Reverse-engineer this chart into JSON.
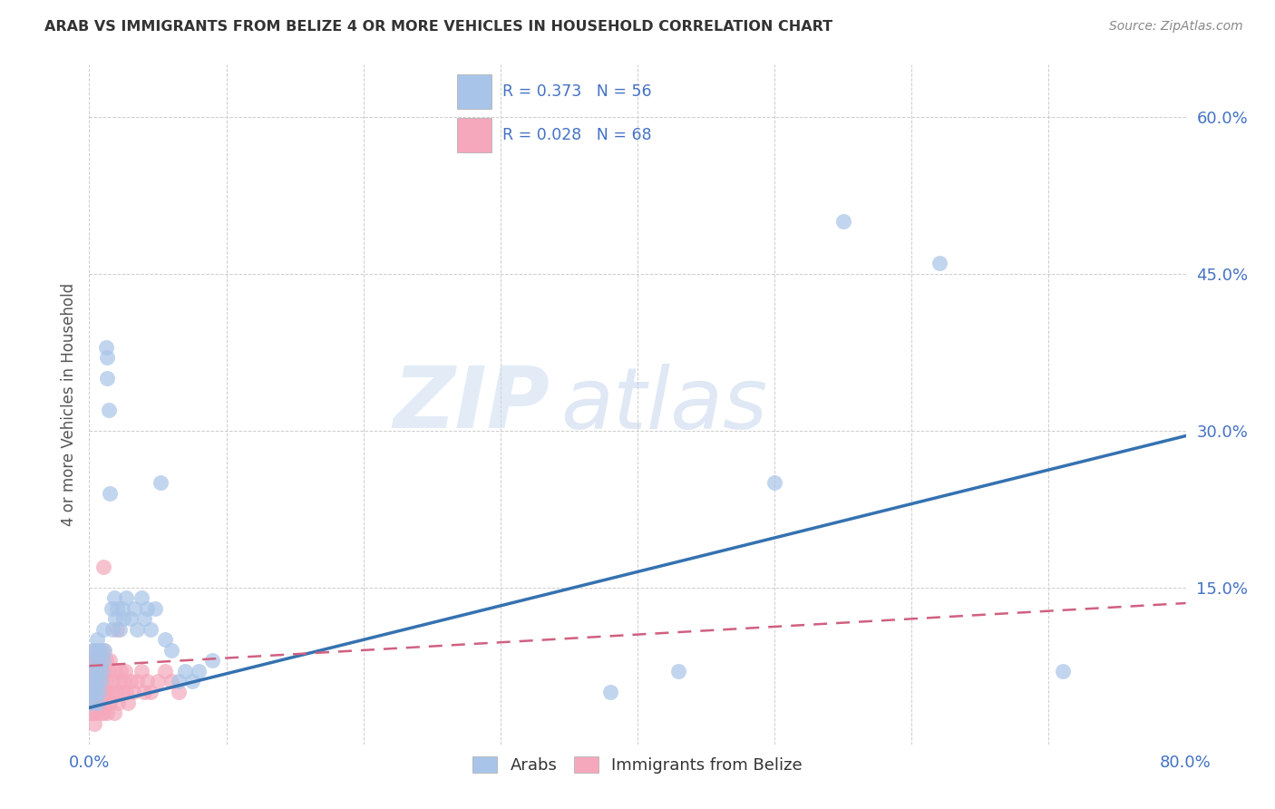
{
  "title": "ARAB VS IMMIGRANTS FROM BELIZE 4 OR MORE VEHICLES IN HOUSEHOLD CORRELATION CHART",
  "source": "Source: ZipAtlas.com",
  "ylabel": "4 or more Vehicles in Household",
  "xlim": [
    0.0,
    0.8
  ],
  "ylim": [
    0.0,
    0.65
  ],
  "xticks": [
    0.0,
    0.1,
    0.2,
    0.3,
    0.4,
    0.5,
    0.6,
    0.7,
    0.8
  ],
  "yticks": [
    0.0,
    0.15,
    0.3,
    0.45,
    0.6
  ],
  "xtick_labels": [
    "0.0%",
    "",
    "",
    "",
    "",
    "",
    "",
    "",
    "80.0%"
  ],
  "ytick_labels": [
    "",
    "15.0%",
    "30.0%",
    "45.0%",
    "60.0%"
  ],
  "arab_color": "#a8c4e8",
  "belize_color": "#f5a8bc",
  "arab_R": 0.373,
  "arab_N": 56,
  "belize_R": 0.028,
  "belize_N": 68,
  "legend_label_arab": "Arabs",
  "legend_label_belize": "Immigrants from Belize",
  "watermark_zip": "ZIP",
  "watermark_atlas": "atlas",
  "arab_line_x": [
    0.0,
    0.8
  ],
  "arab_line_y": [
    0.035,
    0.295
  ],
  "belize_line_x": [
    0.0,
    0.8
  ],
  "belize_line_y": [
    0.075,
    0.135
  ],
  "arab_scatter_x": [
    0.001,
    0.002,
    0.002,
    0.003,
    0.003,
    0.004,
    0.004,
    0.005,
    0.005,
    0.006,
    0.006,
    0.006,
    0.007,
    0.007,
    0.008,
    0.008,
    0.009,
    0.01,
    0.01,
    0.011,
    0.012,
    0.013,
    0.013,
    0.014,
    0.015,
    0.016,
    0.017,
    0.018,
    0.019,
    0.02,
    0.022,
    0.024,
    0.025,
    0.027,
    0.03,
    0.033,
    0.035,
    0.038,
    0.04,
    0.042,
    0.045,
    0.048,
    0.052,
    0.055,
    0.06,
    0.065,
    0.07,
    0.075,
    0.08,
    0.09,
    0.38,
    0.43,
    0.5,
    0.55,
    0.62,
    0.71
  ],
  "arab_scatter_y": [
    0.04,
    0.05,
    0.08,
    0.06,
    0.09,
    0.05,
    0.07,
    0.06,
    0.09,
    0.04,
    0.07,
    0.1,
    0.05,
    0.08,
    0.06,
    0.09,
    0.07,
    0.08,
    0.11,
    0.09,
    0.38,
    0.37,
    0.35,
    0.32,
    0.24,
    0.13,
    0.11,
    0.14,
    0.12,
    0.13,
    0.11,
    0.13,
    0.12,
    0.14,
    0.12,
    0.13,
    0.11,
    0.14,
    0.12,
    0.13,
    0.11,
    0.13,
    0.25,
    0.1,
    0.09,
    0.06,
    0.07,
    0.06,
    0.07,
    0.08,
    0.05,
    0.07,
    0.25,
    0.5,
    0.46,
    0.07
  ],
  "belize_scatter_x": [
    0.0003,
    0.0005,
    0.0007,
    0.001,
    0.001,
    0.0012,
    0.0015,
    0.002,
    0.002,
    0.0025,
    0.003,
    0.003,
    0.003,
    0.004,
    0.004,
    0.004,
    0.005,
    0.005,
    0.005,
    0.006,
    0.006,
    0.006,
    0.007,
    0.007,
    0.007,
    0.008,
    0.008,
    0.008,
    0.009,
    0.009,
    0.01,
    0.01,
    0.01,
    0.011,
    0.011,
    0.012,
    0.012,
    0.013,
    0.013,
    0.014,
    0.015,
    0.015,
    0.016,
    0.017,
    0.018,
    0.019,
    0.02,
    0.021,
    0.022,
    0.023,
    0.024,
    0.025,
    0.026,
    0.027,
    0.028,
    0.03,
    0.032,
    0.035,
    0.038,
    0.04,
    0.042,
    0.045,
    0.05,
    0.055,
    0.06,
    0.065,
    0.01,
    0.02
  ],
  "belize_scatter_y": [
    0.05,
    0.04,
    0.06,
    0.05,
    0.03,
    0.07,
    0.06,
    0.05,
    0.08,
    0.04,
    0.09,
    0.06,
    0.03,
    0.05,
    0.08,
    0.02,
    0.06,
    0.04,
    0.08,
    0.05,
    0.07,
    0.03,
    0.06,
    0.09,
    0.04,
    0.03,
    0.07,
    0.05,
    0.06,
    0.04,
    0.09,
    0.05,
    0.03,
    0.07,
    0.04,
    0.06,
    0.08,
    0.05,
    0.03,
    0.07,
    0.08,
    0.04,
    0.05,
    0.06,
    0.03,
    0.07,
    0.05,
    0.04,
    0.06,
    0.07,
    0.05,
    0.06,
    0.07,
    0.05,
    0.04,
    0.06,
    0.05,
    0.06,
    0.07,
    0.05,
    0.06,
    0.05,
    0.06,
    0.07,
    0.06,
    0.05,
    0.17,
    0.11
  ]
}
